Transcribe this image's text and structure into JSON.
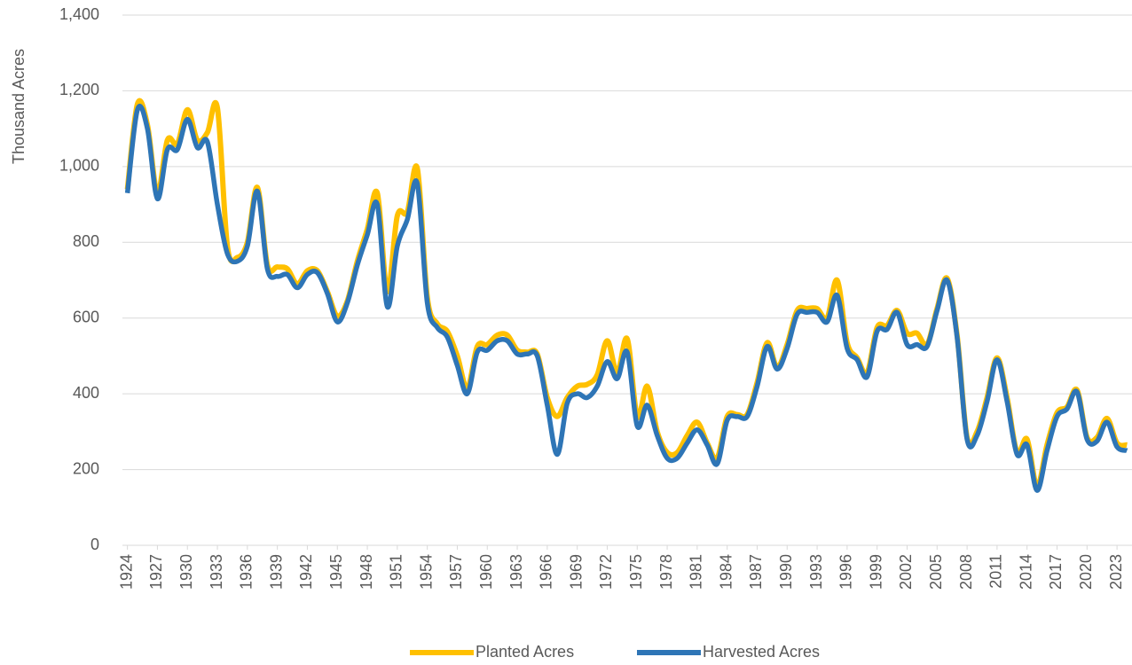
{
  "chart_data": {
    "type": "line",
    "y_label": "Thousand Acres",
    "x": [
      1924,
      1925,
      1926,
      1927,
      1928,
      1929,
      1930,
      1931,
      1932,
      1933,
      1934,
      1935,
      1936,
      1937,
      1938,
      1939,
      1940,
      1941,
      1942,
      1943,
      1944,
      1945,
      1946,
      1947,
      1948,
      1949,
      1950,
      1951,
      1952,
      1953,
      1954,
      1955,
      1956,
      1957,
      1958,
      1959,
      1960,
      1961,
      1962,
      1963,
      1964,
      1965,
      1966,
      1967,
      1968,
      1969,
      1970,
      1971,
      1972,
      1973,
      1974,
      1975,
      1976,
      1977,
      1978,
      1979,
      1980,
      1981,
      1982,
      1983,
      1984,
      1985,
      1986,
      1987,
      1988,
      1989,
      1990,
      1991,
      1992,
      1993,
      1994,
      1995,
      1996,
      1997,
      1998,
      1999,
      2000,
      2001,
      2002,
      2003,
      2004,
      2005,
      2006,
      2007,
      2008,
      2009,
      2010,
      2011,
      2012,
      2013,
      2014,
      2015,
      2016,
      2017,
      2018,
      2019,
      2020,
      2021,
      2022,
      2023,
      2024
    ],
    "series": [
      {
        "name": "Planted Acres",
        "color": "#ffc000",
        "values": [
          940,
          1165,
          1110,
          930,
          1070,
          1060,
          1150,
          1070,
          1090,
          1155,
          790,
          760,
          800,
          945,
          740,
          735,
          730,
          690,
          725,
          725,
          670,
          605,
          645,
          750,
          835,
          930,
          670,
          870,
          880,
          995,
          655,
          585,
          565,
          500,
          415,
          525,
          530,
          555,
          555,
          515,
          510,
          505,
          390,
          340,
          390,
          420,
          425,
          450,
          540,
          455,
          545,
          340,
          420,
          300,
          245,
          245,
          290,
          325,
          270,
          230,
          340,
          345,
          345,
          430,
          535,
          470,
          530,
          620,
          625,
          625,
          600,
          700,
          535,
          495,
          455,
          575,
          580,
          620,
          560,
          560,
          530,
          625,
          705,
          555,
          285,
          300,
          390,
          495,
          390,
          245,
          280,
          155,
          265,
          350,
          365,
          410,
          285,
          285,
          335,
          270,
          265
        ]
      },
      {
        "name": "Harvested Acres",
        "color": "#2e75b6",
        "values": [
          930,
          1150,
          1100,
          915,
          1045,
          1045,
          1125,
          1050,
          1065,
          900,
          770,
          750,
          790,
          935,
          730,
          710,
          715,
          680,
          715,
          720,
          665,
          590,
          640,
          740,
          820,
          900,
          630,
          790,
          860,
          955,
          640,
          575,
          550,
          475,
          400,
          510,
          515,
          540,
          540,
          505,
          505,
          500,
          370,
          240,
          375,
          400,
          390,
          420,
          485,
          440,
          510,
          315,
          370,
          290,
          230,
          230,
          270,
          305,
          265,
          215,
          330,
          340,
          340,
          420,
          525,
          465,
          520,
          610,
          615,
          615,
          590,
          660,
          520,
          490,
          445,
          565,
          570,
          615,
          530,
          530,
          525,
          620,
          700,
          550,
          280,
          290,
          380,
          490,
          380,
          240,
          265,
          145,
          250,
          340,
          360,
          405,
          280,
          275,
          325,
          260,
          250
        ]
      }
    ],
    "xlim": [
      1923.5,
      2024.5
    ],
    "xticks": [
      1924,
      1927,
      1930,
      1933,
      1936,
      1939,
      1942,
      1945,
      1948,
      1951,
      1954,
      1957,
      1960,
      1963,
      1966,
      1969,
      1972,
      1975,
      1978,
      1981,
      1984,
      1987,
      1990,
      1993,
      1996,
      1999,
      2002,
      2005,
      2008,
      2011,
      2014,
      2017,
      2020,
      2023
    ],
    "ylim": [
      0,
      1400
    ],
    "yticks": [
      0,
      200,
      400,
      600,
      800,
      {
        "value": 1000,
        "label": "1,000"
      },
      {
        "value": 1200,
        "label": "1,200"
      },
      {
        "value": 1400,
        "label": "1,400"
      }
    ],
    "grid": true,
    "legend": "bottom"
  }
}
